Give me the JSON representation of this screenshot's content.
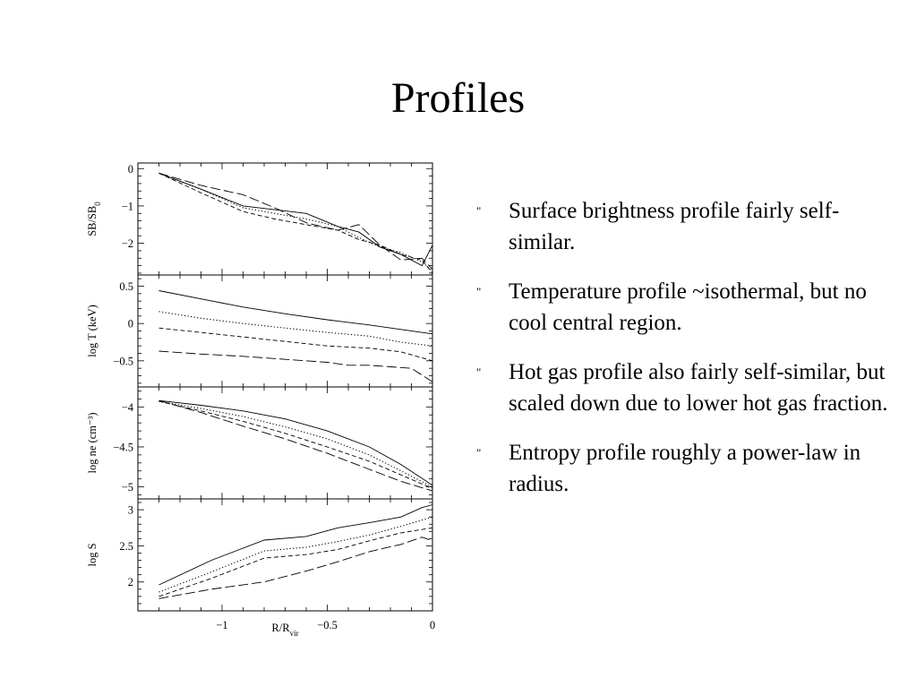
{
  "title": "Profiles",
  "bullets": [
    {
      "marker": "\"",
      "text": "Surface brightness profile fairly self-similar."
    },
    {
      "marker": "\"",
      "text": "Temperature profile ~isothermal, but no cool central region."
    },
    {
      "marker": "\"",
      "text": "Hot gas profile also fairly self-similar, but scaled down due to lower hot gas fraction."
    },
    {
      "marker": "\"",
      "text": "Entropy profile roughly a power-law in radius."
    }
  ],
  "chart_data": {
    "type": "line",
    "xlabel": "R/R",
    "xlabel_sub": "vir",
    "xlim": [
      -1.4,
      0
    ],
    "xticks": [
      {
        "value": -1,
        "label": "−1"
      },
      {
        "value": -0.5,
        "label": "−0.5"
      },
      {
        "value": 0,
        "label": "0"
      }
    ],
    "panels": [
      {
        "ylabel": "SB/SB",
        "ylabel_sub": "0",
        "ylim": [
          -2.85,
          0.15
        ],
        "yticks": [
          {
            "value": 0,
            "label": "0"
          },
          {
            "value": -1,
            "label": "−1"
          },
          {
            "value": -2,
            "label": "−2"
          }
        ],
        "series": [
          {
            "style": "solid",
            "x": [
              -1.3,
              -1.1,
              -0.9,
              -0.75,
              -0.6,
              -0.45,
              -0.35,
              -0.25,
              -0.15,
              -0.05,
              0
            ],
            "y": [
              -0.12,
              -0.55,
              -1.0,
              -1.1,
              -1.2,
              -1.55,
              -1.7,
              -2.1,
              -2.3,
              -2.6,
              -2.05
            ]
          },
          {
            "style": "dotted",
            "x": [
              -1.3,
              -1.1,
              -0.9,
              -0.75,
              -0.6,
              -0.45,
              -0.35,
              -0.25,
              -0.15,
              -0.05,
              0
            ],
            "y": [
              -0.12,
              -0.55,
              -1.05,
              -1.2,
              -1.35,
              -1.55,
              -1.85,
              -2.1,
              -2.25,
              -2.5,
              -2.75
            ]
          },
          {
            "style": "dashed",
            "x": [
              -1.3,
              -1.1,
              -0.9,
              -0.75,
              -0.6,
              -0.45,
              -0.35,
              -0.25,
              -0.15,
              -0.05,
              0
            ],
            "y": [
              -0.12,
              -0.65,
              -1.15,
              -1.35,
              -1.5,
              -1.65,
              -1.9,
              -2.05,
              -2.3,
              -2.45,
              -2.8
            ]
          },
          {
            "style": "longdash",
            "x": [
              -1.3,
              -1.1,
              -0.9,
              -0.75,
              -0.6,
              -0.45,
              -0.35,
              -0.25,
              -0.15,
              -0.05,
              0
            ],
            "y": [
              -0.12,
              -0.45,
              -0.7,
              -1.05,
              -1.45,
              -1.65,
              -1.5,
              -2.05,
              -2.45,
              -2.4,
              -2.7
            ]
          }
        ]
      },
      {
        "ylabel": "log T (keV)",
        "ylim": [
          -0.85,
          0.65
        ],
        "yticks": [
          {
            "value": 0.5,
            "label": "0.5"
          },
          {
            "value": 0,
            "label": "0"
          },
          {
            "value": -0.5,
            "label": "−0.5"
          }
        ],
        "series": [
          {
            "style": "solid",
            "x": [
              -1.3,
              -1.1,
              -0.9,
              -0.7,
              -0.5,
              -0.3,
              -0.15,
              0
            ],
            "y": [
              0.44,
              0.33,
              0.22,
              0.13,
              0.05,
              -0.02,
              -0.08,
              -0.14
            ]
          },
          {
            "style": "dotted",
            "x": [
              -1.3,
              -1.1,
              -0.9,
              -0.7,
              -0.5,
              -0.3,
              -0.15,
              0
            ],
            "y": [
              0.16,
              0.07,
              0.0,
              -0.06,
              -0.12,
              -0.17,
              -0.25,
              -0.3
            ]
          },
          {
            "style": "dashed",
            "x": [
              -1.3,
              -1.1,
              -0.9,
              -0.7,
              -0.5,
              -0.3,
              -0.15,
              0
            ],
            "y": [
              -0.06,
              -0.12,
              -0.18,
              -0.24,
              -0.3,
              -0.33,
              -0.38,
              -0.5
            ]
          },
          {
            "style": "longdash",
            "x": [
              -1.3,
              -1.1,
              -0.9,
              -0.7,
              -0.5,
              -0.4,
              -0.3,
              -0.2,
              -0.1,
              0
            ],
            "y": [
              -0.37,
              -0.41,
              -0.44,
              -0.48,
              -0.52,
              -0.56,
              -0.56,
              -0.58,
              -0.6,
              -0.78
            ]
          }
        ]
      },
      {
        "ylabel": "log ne (cm⁻³)",
        "ylim": [
          -5.15,
          -3.75
        ],
        "yticks": [
          {
            "value": -4,
            "label": "−4"
          },
          {
            "value": -4.5,
            "label": "−4.5"
          },
          {
            "value": -5,
            "label": "−5"
          }
        ],
        "series": [
          {
            "style": "solid",
            "x": [
              -1.3,
              -1.1,
              -0.9,
              -0.7,
              -0.5,
              -0.3,
              -0.15,
              0
            ],
            "y": [
              -3.92,
              -3.98,
              -4.05,
              -4.15,
              -4.3,
              -4.5,
              -4.72,
              -4.98
            ]
          },
          {
            "style": "dotted",
            "x": [
              -1.3,
              -1.1,
              -0.9,
              -0.7,
              -0.5,
              -0.3,
              -0.15,
              0
            ],
            "y": [
              -3.93,
              -4.02,
              -4.12,
              -4.25,
              -4.4,
              -4.6,
              -4.8,
              -5.0
            ]
          },
          {
            "style": "dashed",
            "x": [
              -1.3,
              -1.1,
              -0.9,
              -0.7,
              -0.5,
              -0.3,
              -0.15,
              0
            ],
            "y": [
              -3.93,
              -4.05,
              -4.18,
              -4.33,
              -4.5,
              -4.68,
              -4.85,
              -5.02
            ]
          },
          {
            "style": "longdash",
            "x": [
              -1.3,
              -1.1,
              -0.9,
              -0.7,
              -0.5,
              -0.3,
              -0.15,
              0
            ],
            "y": [
              -3.92,
              -4.07,
              -4.24,
              -4.4,
              -4.58,
              -4.78,
              -4.93,
              -5.05
            ]
          }
        ]
      },
      {
        "ylabel": "log S",
        "ylim": [
          1.6,
          3.15
        ],
        "yticks": [
          {
            "value": 3,
            "label": "3"
          },
          {
            "value": 2.5,
            "label": "2.5"
          },
          {
            "value": 2,
            "label": "2"
          }
        ],
        "series": [
          {
            "style": "solid",
            "x": [
              -1.3,
              -1.05,
              -0.8,
              -0.6,
              -0.45,
              -0.3,
              -0.15,
              -0.05,
              0
            ],
            "y": [
              1.96,
              2.3,
              2.58,
              2.63,
              2.75,
              2.82,
              2.9,
              3.03,
              3.07
            ]
          },
          {
            "style": "dotted",
            "x": [
              -1.3,
              -1.05,
              -0.8,
              -0.6,
              -0.45,
              -0.3,
              -0.15,
              0
            ],
            "y": [
              1.86,
              2.14,
              2.43,
              2.48,
              2.56,
              2.65,
              2.77,
              2.9
            ]
          },
          {
            "style": "dashed",
            "x": [
              -1.3,
              -1.05,
              -0.8,
              -0.6,
              -0.45,
              -0.3,
              -0.15,
              0
            ],
            "y": [
              1.8,
              2.05,
              2.33,
              2.38,
              2.45,
              2.57,
              2.68,
              2.75
            ]
          },
          {
            "style": "longdash",
            "x": [
              -1.3,
              -1.05,
              -0.8,
              -0.6,
              -0.45,
              -0.3,
              -0.15,
              -0.05,
              0
            ],
            "y": [
              1.77,
              1.9,
              2.0,
              2.15,
              2.28,
              2.42,
              2.52,
              2.62,
              2.57
            ]
          }
        ]
      }
    ]
  }
}
